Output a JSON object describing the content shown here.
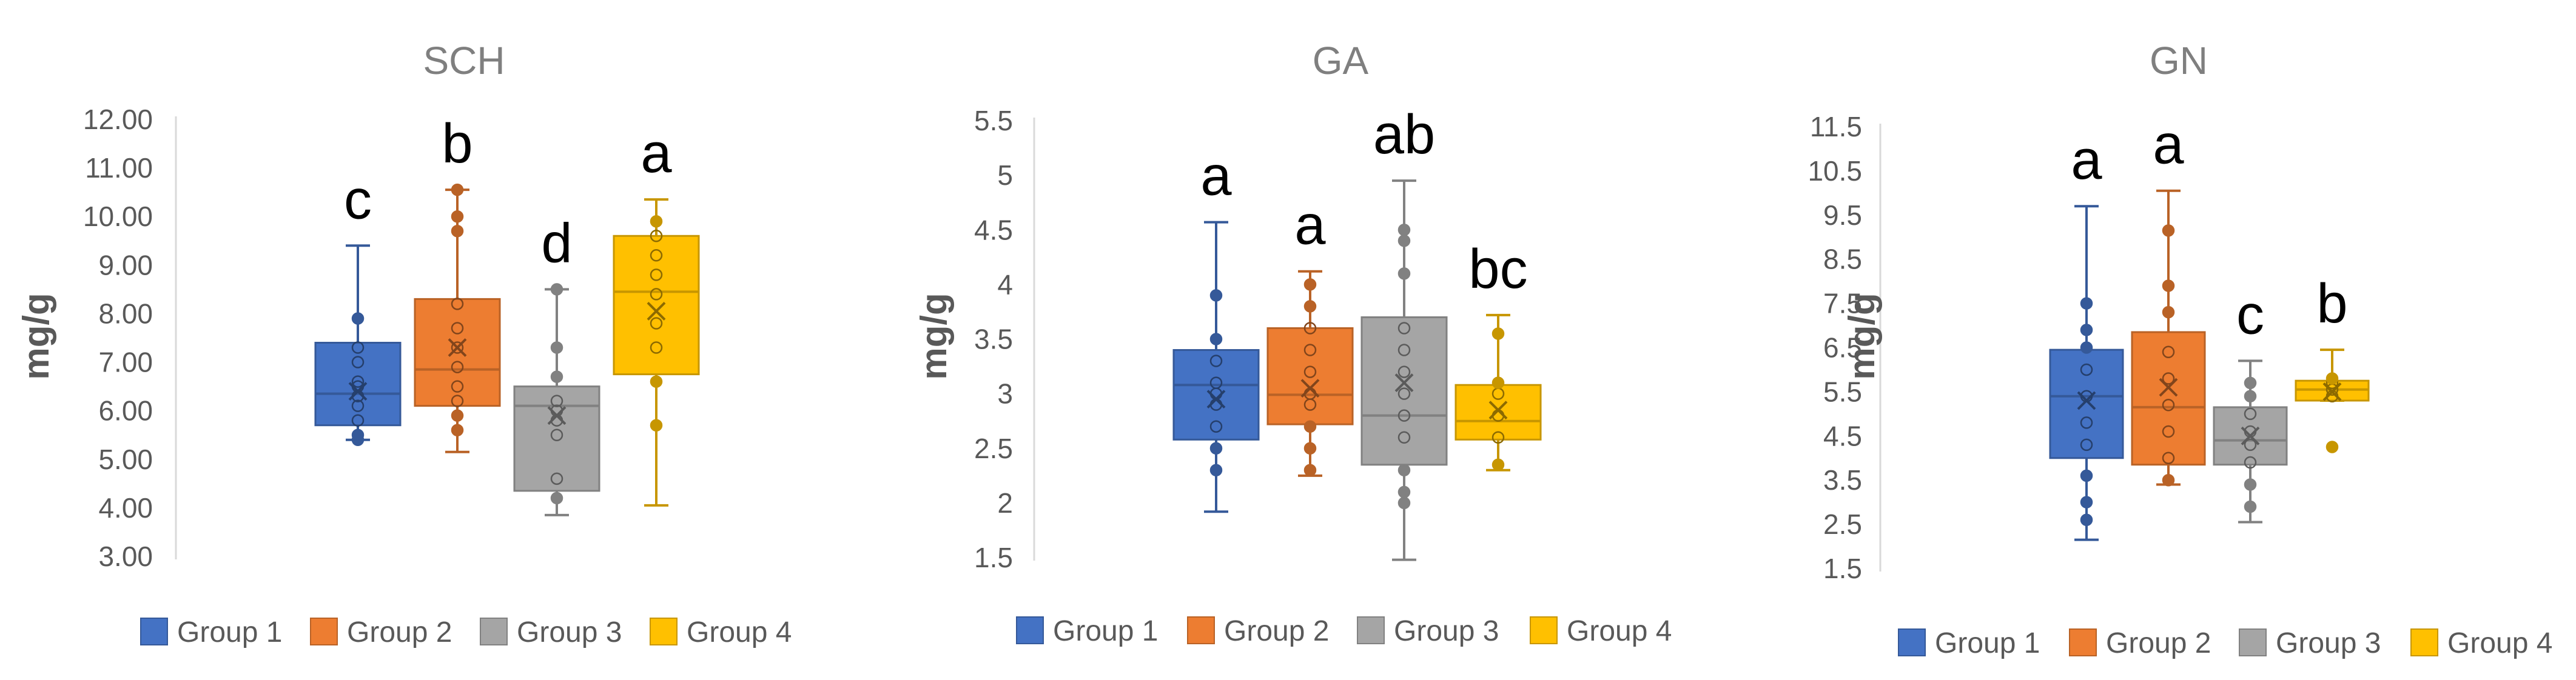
{
  "colors": {
    "group1": "#4472C4",
    "group2": "#ED7D31",
    "group3": "#A5A5A5",
    "group4": "#FFC000",
    "axis": "#d9d9d9"
  },
  "chart_data": [
    {
      "type": "box",
      "title": "SCH",
      "ylabel": "mg/g",
      "ylim": [
        3.0,
        12.0
      ],
      "ytick_labels": [
        "3.00",
        "4.00",
        "5.00",
        "6.00",
        "7.00",
        "8.00",
        "9.00",
        "10.00",
        "11.00",
        "12.00"
      ],
      "legend": [
        "Group 1",
        "Group 2",
        "Group 3",
        "Group 4"
      ],
      "series": [
        {
          "name": "Group 1",
          "min": 5.4,
          "q1": 5.7,
          "median": 6.35,
          "q3": 7.4,
          "max": 9.4,
          "mean": 6.4,
          "letter": "c",
          "points": [
            5.4,
            5.5,
            5.8,
            6.1,
            6.3,
            6.5,
            6.6,
            7.0,
            7.3,
            7.9
          ]
        },
        {
          "name": "Group 2",
          "min": 5.15,
          "q1": 6.1,
          "median": 6.85,
          "q3": 8.3,
          "max": 10.55,
          "mean": 7.3,
          "letter": "b",
          "points": [
            5.6,
            5.9,
            6.2,
            6.5,
            6.9,
            7.3,
            7.7,
            8.2,
            9.7,
            10.0,
            10.55
          ]
        },
        {
          "name": "Group 3",
          "min": 3.85,
          "q1": 4.35,
          "median": 6.1,
          "q3": 6.5,
          "max": 8.5,
          "mean": 5.9,
          "letter": "d",
          "points": [
            4.2,
            4.6,
            5.5,
            5.8,
            6.0,
            6.2,
            6.7,
            7.3,
            8.5
          ]
        },
        {
          "name": "Group 4",
          "min": 4.05,
          "q1": 6.75,
          "median": 8.45,
          "q3": 9.6,
          "max": 10.35,
          "mean": 8.05,
          "letter": "a",
          "points": [
            5.7,
            6.6,
            7.3,
            7.8,
            8.4,
            8.8,
            9.2,
            9.6,
            9.9
          ]
        }
      ]
    },
    {
      "type": "box",
      "title": "GA",
      "ylabel": "mg/g",
      "ylim": [
        1.5,
        5.5
      ],
      "ytick_labels": [
        "1.5",
        "2",
        "2.5",
        "3",
        "3.5",
        "4",
        "4.5",
        "5",
        "5.5"
      ],
      "legend": [
        "Group 1",
        "Group 2",
        "Group 3",
        "Group 4"
      ],
      "series": [
        {
          "name": "Group 1",
          "min": 1.92,
          "q1": 2.58,
          "median": 3.08,
          "q3": 3.4,
          "max": 4.57,
          "mean": 2.95,
          "letter": "a",
          "points": [
            2.3,
            2.5,
            2.7,
            2.9,
            3.0,
            3.1,
            3.3,
            3.5,
            3.9
          ]
        },
        {
          "name": "Group 2",
          "min": 2.25,
          "q1": 2.72,
          "median": 2.99,
          "q3": 3.6,
          "max": 4.12,
          "mean": 3.05,
          "letter": "a",
          "points": [
            2.3,
            2.5,
            2.7,
            2.9,
            3.0,
            3.2,
            3.4,
            3.6,
            3.8,
            4.0
          ]
        },
        {
          "name": "Group 3",
          "min": 1.48,
          "q1": 2.35,
          "median": 2.8,
          "q3": 3.7,
          "max": 4.95,
          "mean": 3.1,
          "letter": "ab",
          "points": [
            2.0,
            2.1,
            2.3,
            2.6,
            2.8,
            3.0,
            3.2,
            3.4,
            3.6,
            4.1,
            4.4,
            4.5
          ]
        },
        {
          "name": "Group 4",
          "min": 2.3,
          "q1": 2.58,
          "median": 2.75,
          "q3": 3.08,
          "max": 3.72,
          "mean": 2.85,
          "letter": "bc",
          "points": [
            2.35,
            2.6,
            2.8,
            3.0,
            3.1,
            3.55
          ]
        }
      ]
    },
    {
      "type": "box",
      "title": "GN",
      "ylabel": "mg/g",
      "ylim": [
        1.5,
        11.5
      ],
      "ytick_labels": [
        "1.5",
        "2.5",
        "3.5",
        "4.5",
        "5.5",
        "6.5",
        "7.5",
        "8.5",
        "9.5",
        "10.5",
        "11.5"
      ],
      "legend": [
        "Group 1",
        "Group 2",
        "Group 3",
        "Group 4"
      ],
      "series": [
        {
          "name": "Group 1",
          "min": 2.15,
          "q1": 4.0,
          "median": 5.4,
          "q3": 6.45,
          "max": 9.7,
          "mean": 5.3,
          "letter": "a",
          "points": [
            2.6,
            3.0,
            3.6,
            4.3,
            4.8,
            5.4,
            6.0,
            6.5,
            6.9,
            7.5
          ]
        },
        {
          "name": "Group 2",
          "min": 3.4,
          "q1": 3.85,
          "median": 5.15,
          "q3": 6.85,
          "max": 10.05,
          "mean": 5.6,
          "letter": "a",
          "points": [
            3.5,
            4.0,
            4.6,
            5.2,
            5.8,
            6.4,
            7.3,
            7.9,
            9.15
          ]
        },
        {
          "name": "Group 3",
          "min": 2.55,
          "q1": 3.85,
          "median": 4.4,
          "q3": 5.15,
          "max": 6.2,
          "mean": 4.5,
          "letter": "c",
          "points": [
            2.9,
            3.4,
            3.9,
            4.3,
            4.6,
            5.0,
            5.4,
            5.7
          ]
        },
        {
          "name": "Group 4",
          "min": 5.3,
          "q1": 5.3,
          "median": 5.55,
          "q3": 5.75,
          "max": 6.45,
          "mean": 5.5,
          "letter": "b",
          "points": [
            4.25,
            5.4,
            5.55,
            5.7,
            5.8
          ]
        }
      ]
    }
  ]
}
